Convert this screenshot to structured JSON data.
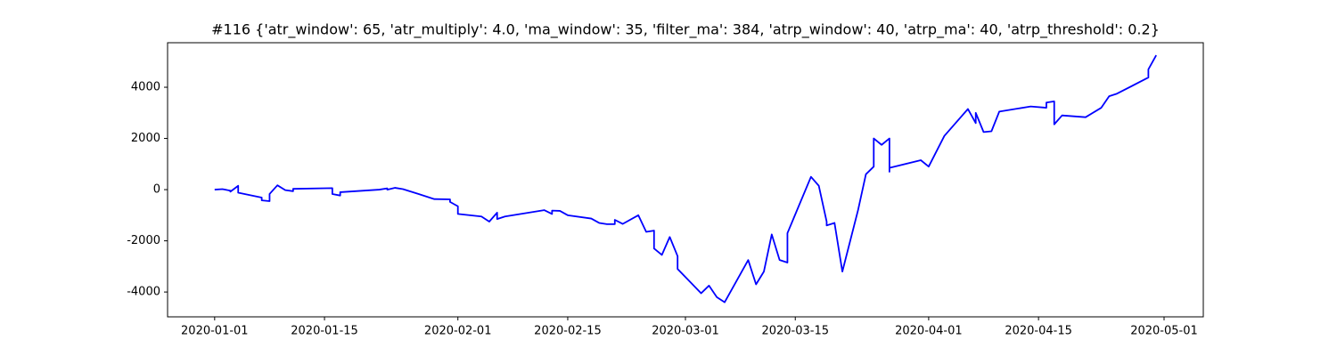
{
  "chart_data": {
    "type": "line",
    "title": "#116 {'atr_window': 65, 'atr_multiply': 4.0, 'ma_window': 35, 'filter_ma': 384, 'atrp_window': 40, 'atrp_ma': 40, 'atrp_threshold': 0.2}",
    "x": [
      "2020-01-01",
      "2020-01-02",
      "2020-01-03",
      "2020-01-03",
      "2020-01-04",
      "2020-01-04",
      "2020-01-07",
      "2020-01-07",
      "2020-01-08",
      "2020-01-08",
      "2020-01-09",
      "2020-01-10",
      "2020-01-11",
      "2020-01-11",
      "2020-01-16",
      "2020-01-16",
      "2020-01-17",
      "2020-01-17",
      "2020-01-22",
      "2020-01-23",
      "2020-01-23",
      "2020-01-24",
      "2020-01-25",
      "2020-01-27",
      "2020-01-29",
      "2020-01-31",
      "2020-01-31",
      "2020-02-01",
      "2020-02-01",
      "2020-02-04",
      "2020-02-05",
      "2020-02-06",
      "2020-02-06",
      "2020-02-07",
      "2020-02-12",
      "2020-02-13",
      "2020-02-13",
      "2020-02-14",
      "2020-02-15",
      "2020-02-18",
      "2020-02-19",
      "2020-02-20",
      "2020-02-21",
      "2020-02-21",
      "2020-02-22",
      "2020-02-24",
      "2020-02-25",
      "2020-02-26",
      "2020-02-26",
      "2020-02-27",
      "2020-02-28",
      "2020-02-29",
      "2020-02-29",
      "2020-03-03",
      "2020-03-04",
      "2020-03-05",
      "2020-03-06",
      "2020-03-09",
      "2020-03-10",
      "2020-03-11",
      "2020-03-12",
      "2020-03-13",
      "2020-03-14",
      "2020-03-14",
      "2020-03-17",
      "2020-03-18",
      "2020-03-19",
      "2020-03-19",
      "2020-03-20",
      "2020-03-21",
      "2020-03-23",
      "2020-03-24",
      "2020-03-25",
      "2020-03-25",
      "2020-03-26",
      "2020-03-27",
      "2020-03-27",
      "2020-03-27",
      "2020-03-31",
      "2020-04-01",
      "2020-04-03",
      "2020-04-06",
      "2020-04-07",
      "2020-04-07",
      "2020-04-08",
      "2020-04-09",
      "2020-04-10",
      "2020-04-14",
      "2020-04-16",
      "2020-04-16",
      "2020-04-17",
      "2020-04-17",
      "2020-04-18",
      "2020-04-21",
      "2020-04-23",
      "2020-04-24",
      "2020-04-25",
      "2020-04-29",
      "2020-04-29",
      "2020-04-30"
    ],
    "values": [
      0,
      20,
      -40,
      -80,
      150,
      -120,
      -310,
      -420,
      -450,
      -170,
      170,
      -20,
      -60,
      30,
      60,
      -170,
      -230,
      -100,
      0,
      50,
      0,
      70,
      20,
      -170,
      -370,
      -380,
      -480,
      -650,
      -950,
      -1050,
      -1250,
      -900,
      -1150,
      -1050,
      -800,
      -950,
      -820,
      -830,
      -1000,
      -1130,
      -1300,
      -1350,
      -1350,
      -1180,
      -1340,
      -1000,
      -1650,
      -1600,
      -2300,
      -2550,
      -1850,
      -2600,
      -3100,
      -4050,
      -3750,
      -4200,
      -4400,
      -2750,
      -3700,
      -3200,
      -1750,
      -2750,
      -2850,
      -1700,
      500,
      150,
      -1250,
      -1400,
      -1300,
      -3200,
      -800,
      600,
      900,
      2000,
      1750,
      2000,
      700,
      850,
      1150,
      900,
      2100,
      3150,
      2600,
      3000,
      2250,
      2280,
      3050,
      3250,
      3200,
      3400,
      3450,
      2550,
      2900,
      2830,
      3200,
      3650,
      3750,
      4380,
      4700,
      5250
    ],
    "color": "#0000ff",
    "xlim": [
      "2019-12-26",
      "2020-05-06"
    ],
    "xticks": [
      "2020-01-01",
      "2020-01-15",
      "2020-02-01",
      "2020-02-15",
      "2020-03-01",
      "2020-03-15",
      "2020-04-01",
      "2020-04-15",
      "2020-05-01"
    ],
    "ylim": [
      -4970,
      5740
    ],
    "yticks": [
      -4000,
      -2000,
      0,
      2000,
      4000
    ]
  }
}
